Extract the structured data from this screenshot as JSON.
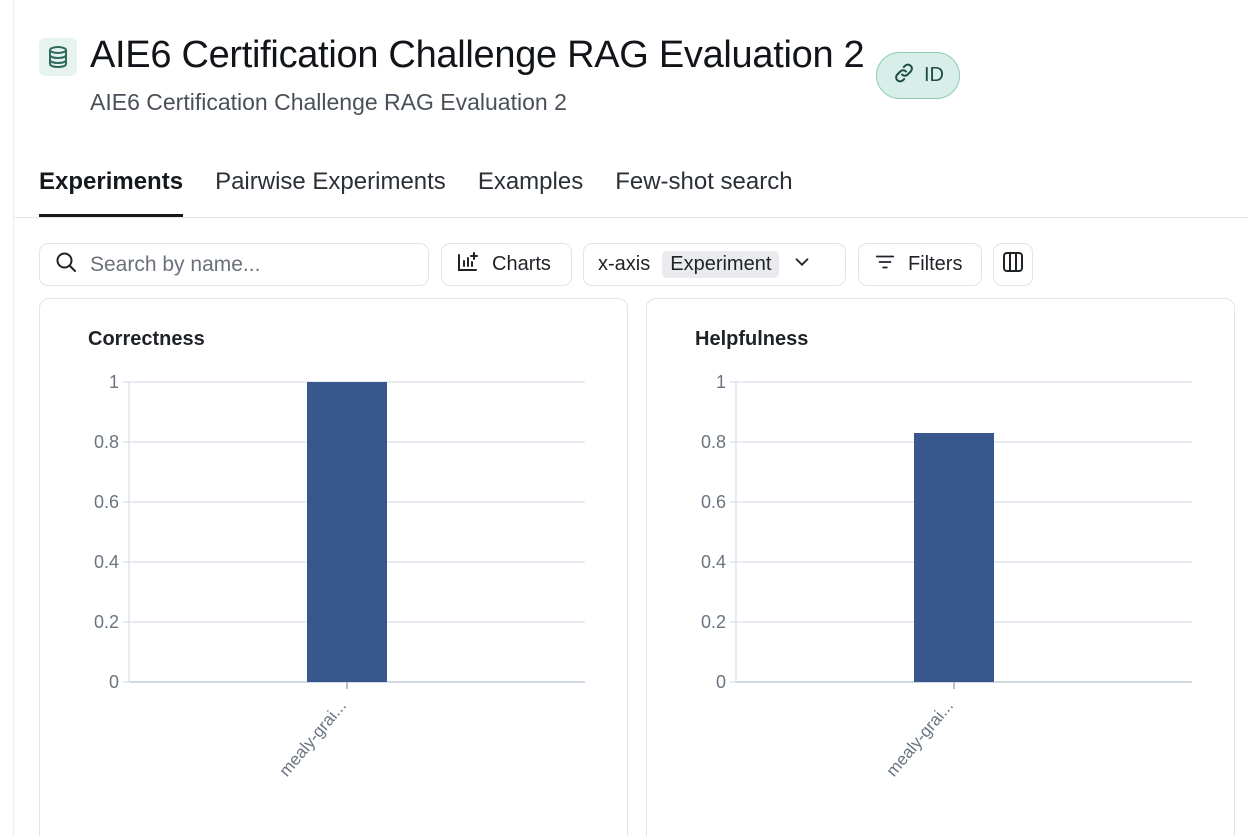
{
  "header": {
    "title": "AIE6 Certification Challenge RAG Evaluation 2",
    "subtitle": "AIE6 Certification Challenge RAG Evaluation 2",
    "id_badge_label": "ID",
    "icon": "database-icon"
  },
  "tabs": [
    {
      "label": "Experiments",
      "active": true
    },
    {
      "label": "Pairwise Experiments",
      "active": false
    },
    {
      "label": "Examples",
      "active": false
    },
    {
      "label": "Few-shot search",
      "active": false
    }
  ],
  "toolbar": {
    "search_placeholder": "Search by name...",
    "charts_label": "Charts",
    "xaxis_label": "x-axis",
    "xaxis_value": "Experiment",
    "filters_label": "Filters"
  },
  "colors": {
    "bar": "#38578c",
    "grid": "#d0d8e4",
    "accent_badge": "#d8efe9"
  },
  "chart_data": [
    {
      "type": "bar",
      "title": "Correctness",
      "categories": [
        "mealy-grai..."
      ],
      "values": [
        1.0
      ],
      "ylim": [
        0,
        1
      ],
      "yticks": [
        "0",
        "0.2",
        "0.4",
        "0.6",
        "0.8",
        "1"
      ],
      "grid": true
    },
    {
      "type": "bar",
      "title": "Helpfulness",
      "categories": [
        "mealy-grai..."
      ],
      "values": [
        0.83
      ],
      "ylim": [
        0,
        1
      ],
      "yticks": [
        "0",
        "0.2",
        "0.4",
        "0.6",
        "0.8",
        "1"
      ],
      "grid": true
    }
  ]
}
